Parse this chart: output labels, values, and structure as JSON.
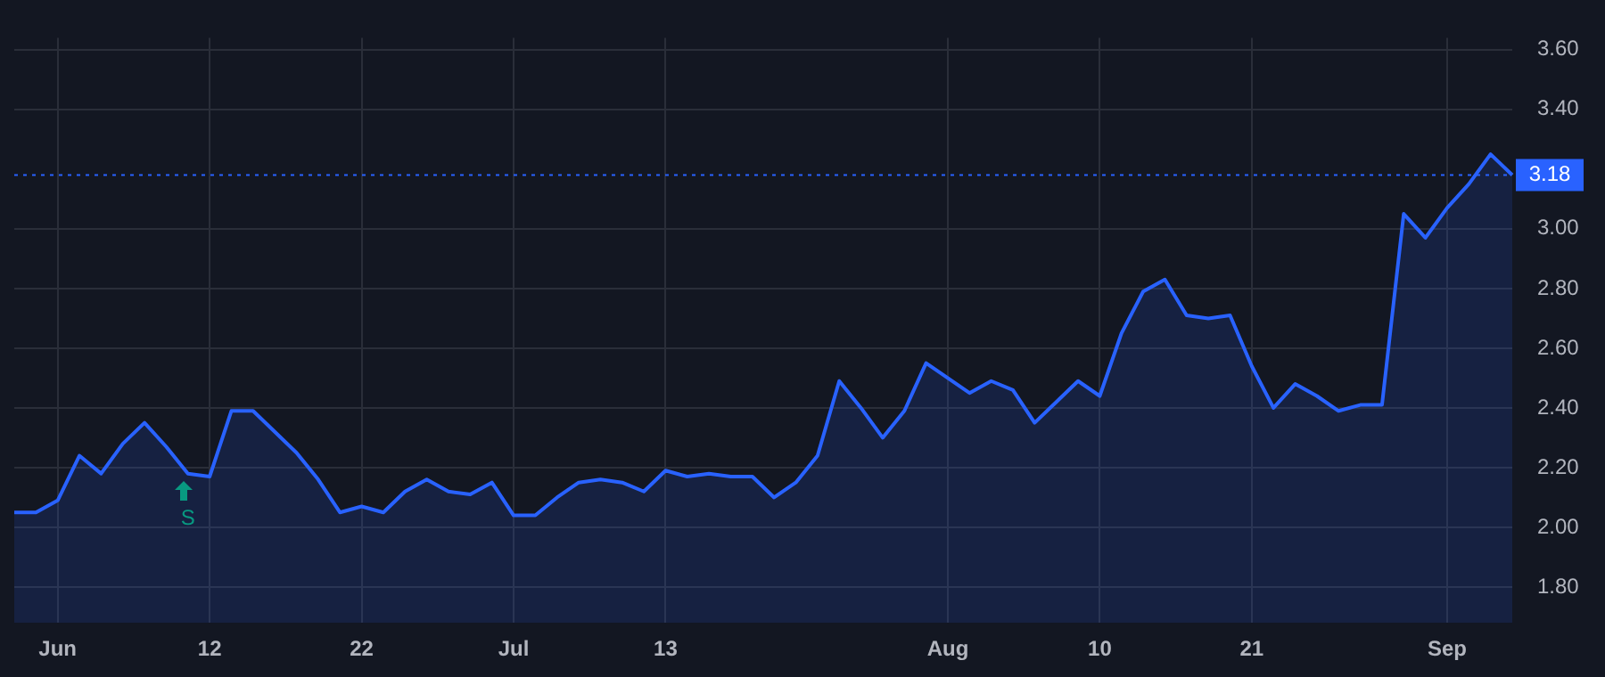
{
  "chart_data": {
    "type": "area",
    "categories": [
      null,
      null,
      "Jun",
      null,
      null,
      null,
      null,
      null,
      null,
      "12",
      null,
      null,
      null,
      null,
      null,
      null,
      "22",
      null,
      null,
      null,
      null,
      null,
      null,
      "Jul",
      null,
      null,
      null,
      null,
      null,
      null,
      "13",
      null,
      null,
      null,
      null,
      null,
      null,
      null,
      null,
      null,
      null,
      null,
      null,
      "Aug",
      null,
      null,
      null,
      null,
      null,
      null,
      "10",
      null,
      null,
      null,
      null,
      null,
      null,
      "21",
      null,
      null,
      null,
      null,
      null,
      null,
      null,
      null,
      "Sep",
      null,
      null,
      null
    ],
    "series": [
      {
        "color": "#2962ff",
        "values": [
          2.05,
          2.05,
          2.09,
          2.24,
          2.18,
          2.28,
          2.35,
          2.27,
          2.18,
          2.17,
          2.39,
          2.39,
          2.32,
          2.25,
          2.16,
          2.05,
          2.07,
          2.05,
          2.12,
          2.16,
          2.12,
          2.11,
          2.15,
          2.04,
          2.04,
          2.1,
          2.15,
          2.16,
          2.15,
          2.12,
          2.19,
          2.17,
          2.18,
          2.17,
          2.17,
          2.1,
          2.15,
          2.24,
          2.49,
          2.4,
          2.3,
          2.39,
          2.55,
          2.5,
          2.45,
          2.49,
          2.46,
          2.35,
          2.42,
          2.49,
          2.44,
          2.65,
          2.79,
          2.83,
          2.71,
          2.7,
          2.71,
          2.54,
          2.4,
          2.48,
          2.44,
          2.39,
          2.41,
          2.41,
          3.05,
          2.97,
          3.07,
          3.15,
          3.25,
          3.18
        ]
      }
    ],
    "ylim": [
      1.68,
      3.64
    ],
    "yticks": [
      {
        "value": 1.8,
        "label": "1.80"
      },
      {
        "value": 2.0,
        "label": "2.00"
      },
      {
        "value": 2.2,
        "label": "2.20"
      },
      {
        "value": 2.4,
        "label": "2.40"
      },
      {
        "value": 2.6,
        "label": "2.60"
      },
      {
        "value": 2.8,
        "label": "2.80"
      },
      {
        "value": 3.0,
        "label": "3.00"
      },
      {
        "value": 3.4,
        "label": "3.40"
      },
      {
        "value": 3.6,
        "label": "3.60"
      }
    ],
    "grid": true,
    "legend": false,
    "marker": "none",
    "line_style": "solid",
    "ref_lines": [
      {
        "axis": "y",
        "value": 3.18,
        "label": "3.18",
        "color": "#2962ff",
        "line_style": "dotted"
      }
    ],
    "annotations": [
      "S"
    ]
  }
}
